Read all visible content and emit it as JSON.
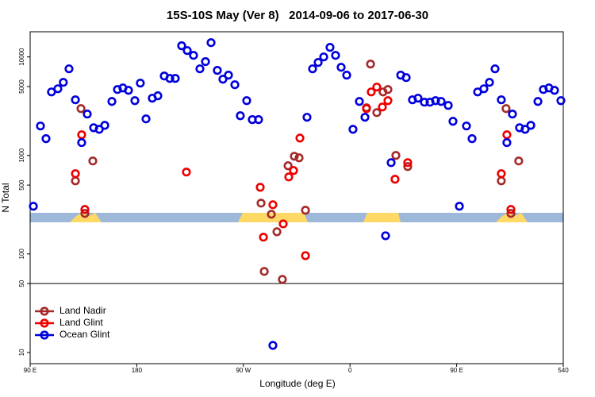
{
  "chart_data": {
    "type": "scatter",
    "title": "15S-10S May (Ver 8)   2014-09-06 to 2017-06-30",
    "x_label": "Longitude (deg E)",
    "y_label": "N Total",
    "xlim": [
      90,
      540
    ],
    "xticks": [
      {
        "value": 90,
        "label": "90 E"
      },
      180,
      {
        "value": 270,
        "label": "90 W"
      },
      {
        "value": 360,
        "label": "0"
      },
      {
        "value": 450,
        "label": "90 E"
      },
      540
    ],
    "ylim": [
      7.7,
      18000
    ],
    "yticks": [
      10,
      50,
      100,
      500,
      1000,
      5000,
      10000
    ],
    "y_scale": "log",
    "reference_line": 50,
    "legend_position": "bottom-left",
    "series": [
      {
        "name": "Land Nadir",
        "color": "#a52a2a",
        "x": [
          128.2,
          132.9,
          136.2,
          142.9,
          284.9,
          287.6,
          293.6,
          298.3,
          302.9,
          307.7,
          313,
          317,
          322.4,
          373.9,
          377.3,
          382.6,
          387.9,
          392,
          398.7,
          408.7,
          487.7,
          491.7,
          495.8,
          502.4
        ],
        "values": [
          552,
          2990,
          258,
          879,
          328,
          66.5,
          253,
          168,
          55.2,
          786,
          981,
          946,
          278,
          3050,
          8460,
          2720,
          4410,
          4670,
          1000,
          771,
          552,
          2990,
          258,
          879
        ]
      },
      {
        "name": "Land Glint",
        "color": "#ee0000",
        "x": [
          128.2,
          133.5,
          136.2,
          221.9,
          284.2,
          286.9,
          294.9,
          303.6,
          308.3,
          312.3,
          317.7,
          322.4,
          373.9,
          377.9,
          382.6,
          387.3,
          392,
          398,
          408.7,
          487.7,
          492.4,
          495.8
        ],
        "values": [
          653,
          1620,
          283,
          678,
          475,
          148,
          316,
          202,
          605,
          703,
          1500,
          96,
          2990,
          4410,
          4940,
          3100,
          3600,
          573,
          845,
          653,
          1620,
          283
        ]
      },
      {
        "name": "Ocean Glint",
        "color": "#0000dd",
        "x": [
          92.7,
          98.7,
          103.4,
          108,
          113.4,
          118,
          122.8,
          128.2,
          133.5,
          138.2,
          143.6,
          148.3,
          153,
          159,
          163.7,
          168.3,
          173,
          178.4,
          183,
          187.8,
          193.1,
          197.8,
          203.2,
          207.9,
          212.5,
          217.9,
          222.6,
          227.9,
          233.3,
          238,
          242.7,
          248,
          252.7,
          257.4,
          262.8,
          267.4,
          272.8,
          277.5,
          282.8,
          294.9,
          323.7,
          328.4,
          333.1,
          337.8,
          343.1,
          347.8,
          352.5,
          357.2,
          362.5,
          367.9,
          372.6,
          390,
          394.7,
          402.8,
          407.4,
          412.7,
          417.4,
          422.8,
          427.5,
          432.2,
          436.9,
          442.9,
          446.9,
          452.3,
          458.3,
          463,
          467.7,
          473,
          477.7,
          482.4,
          487.7,
          492.4,
          497.1,
          503.1,
          507.8,
          512.6,
          518.6,
          523.2,
          527.9,
          532.6,
          538
        ],
        "values": [
          305,
          1990,
          1480,
          4410,
          4750,
          5520,
          7570,
          3670,
          1350,
          2630,
          1910,
          1840,
          2020,
          3530,
          4670,
          4840,
          4580,
          3600,
          5420,
          2350,
          3810,
          4030,
          6400,
          6050,
          6050,
          12980,
          11600,
          10370,
          7570,
          8960,
          13960,
          7300,
          5940,
          6530,
          5220,
          2530,
          3600,
          2310,
          2310,
          11.8,
          2440,
          7570,
          8790,
          10000,
          12500,
          10370,
          7850,
          6530,
          1840,
          3530,
          2440,
          153,
          845,
          6530,
          6170,
          3670,
          3810,
          3470,
          3470,
          3600,
          3530,
          3220,
          2220,
          305,
          1990,
          1480,
          4410,
          4750,
          5520,
          7570,
          3670,
          1350,
          2630,
          1910,
          1840,
          2020,
          3530,
          4670,
          4840,
          4580,
          3600
        ]
      }
    ]
  }
}
